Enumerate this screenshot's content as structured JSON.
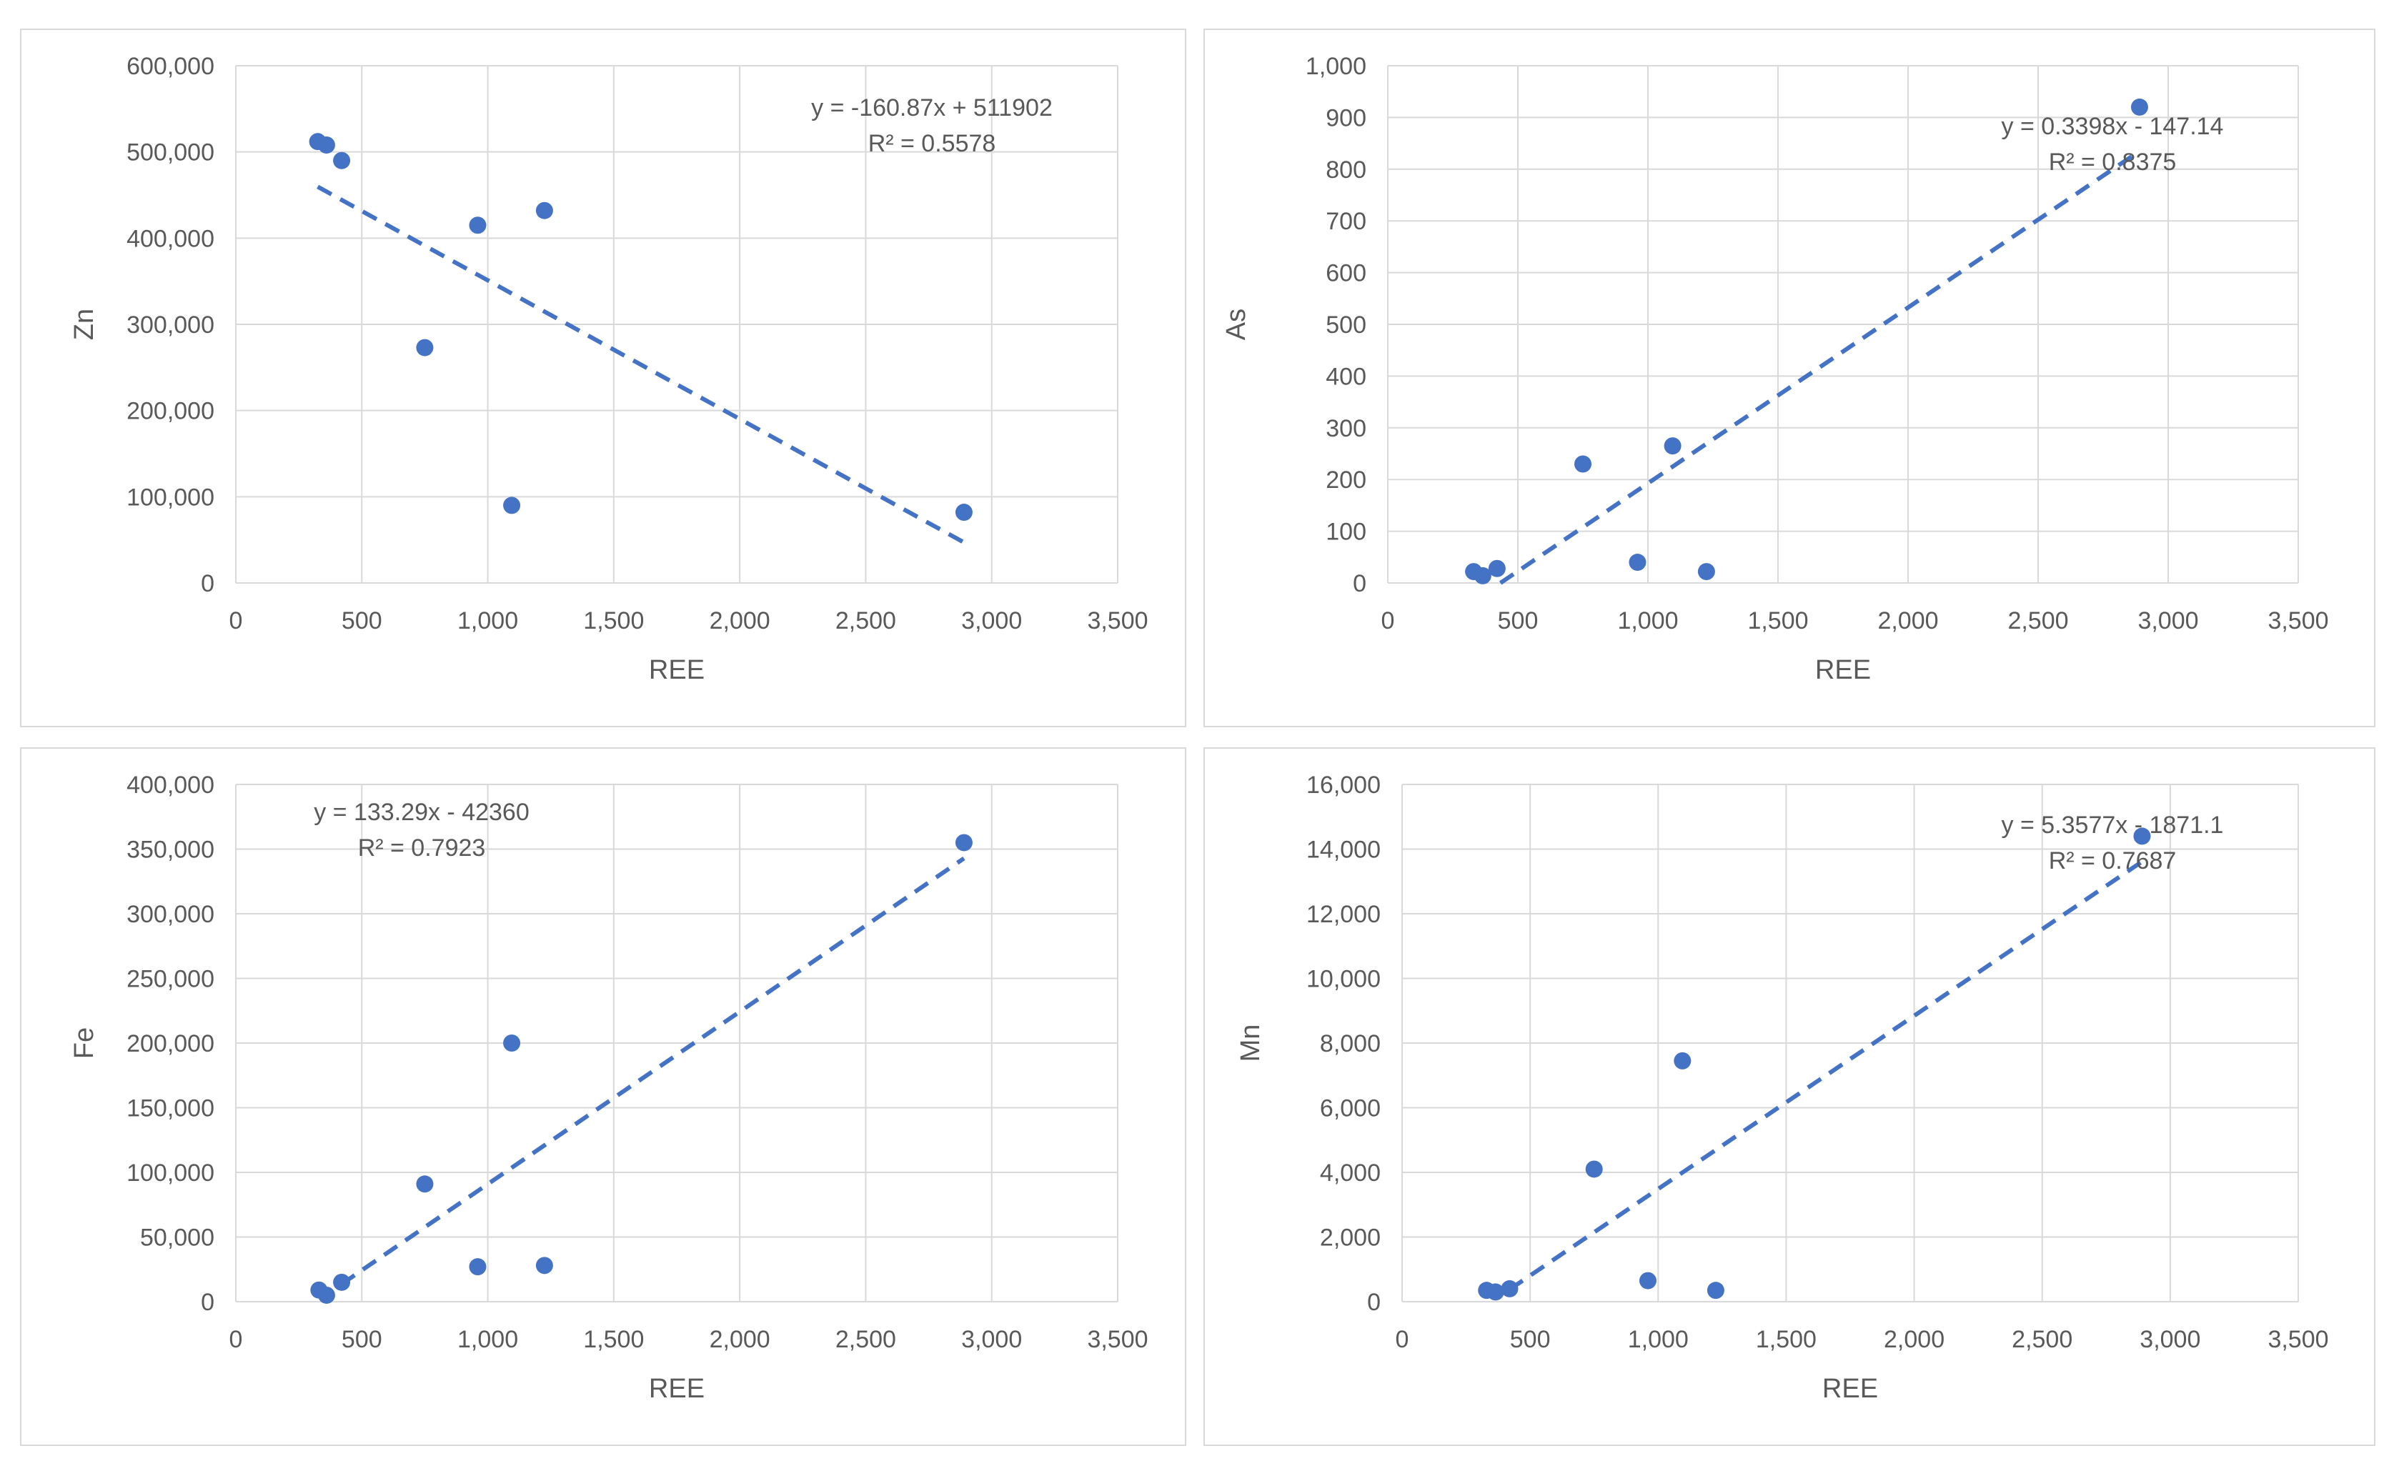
{
  "figure": {
    "chart_data": [
      {
        "type": "scatter",
        "title": "",
        "xlabel": "REE",
        "ylabel": "Zn",
        "xlim": [
          0,
          3500
        ],
        "ylim": [
          0,
          600000
        ],
        "x_ticks": [
          0,
          500,
          1000,
          1500,
          2000,
          2500,
          3000,
          3500
        ],
        "y_ticks": [
          0,
          100000,
          200000,
          300000,
          400000,
          500000,
          600000
        ],
        "x_tick_labels": [
          "0",
          "500",
          "1,000",
          "1,500",
          "2,000",
          "2,500",
          "3,000",
          "3,500"
        ],
        "y_tick_labels": [
          "0",
          "100,000",
          "200,000",
          "300,000",
          "400,000",
          "500,000",
          "600,000"
        ],
        "points": {
          "x": [
            325,
            360,
            420,
            750,
            960,
            1095,
            1225,
            2890
          ],
          "y": [
            512000,
            508000,
            490000,
            273000,
            415000,
            90000,
            432000,
            82000
          ]
        },
        "trendline": {
          "slope": -160.87,
          "intercept": 511902,
          "x_range": [
            325,
            2890
          ]
        },
        "equation": "y = -160.87x + 511902",
        "r_squared": "R² = 0.5578",
        "annotation_position": "top-right",
        "colors": {
          "points": "#4472c4",
          "trendline": "#4472c4",
          "grid": "#d9d9d9"
        }
      },
      {
        "type": "scatter",
        "title": "",
        "xlabel": "REE",
        "ylabel": "As",
        "xlim": [
          0,
          3500
        ],
        "ylim": [
          0,
          1000
        ],
        "x_ticks": [
          0,
          500,
          1000,
          1500,
          2000,
          2500,
          3000,
          3500
        ],
        "y_ticks": [
          0,
          100,
          200,
          300,
          400,
          500,
          600,
          700,
          800,
          900,
          1000
        ],
        "x_tick_labels": [
          "0",
          "500",
          "1,000",
          "1,500",
          "2,000",
          "2,500",
          "3,000",
          "3,500"
        ],
        "y_tick_labels": [
          "0",
          "100",
          "200",
          "300",
          "400",
          "500",
          "600",
          "700",
          "800",
          "900",
          "1,000"
        ],
        "points": {
          "x": [
            330,
            365,
            420,
            750,
            960,
            1095,
            1225,
            2890
          ],
          "y": [
            22,
            14,
            28,
            230,
            40,
            265,
            22,
            920
          ]
        },
        "trendline": {
          "slope": 0.3398,
          "intercept": -147.14,
          "x_range": [
            433,
            2890
          ]
        },
        "equation": "y = 0.3398x - 147.14",
        "r_squared": "R² = 0.8375",
        "annotation_position": "top-right",
        "colors": {
          "points": "#4472c4",
          "trendline": "#4472c4",
          "grid": "#d9d9d9"
        }
      },
      {
        "type": "scatter",
        "title": "",
        "xlabel": "REE",
        "ylabel": "Fe",
        "xlim": [
          0,
          3500
        ],
        "ylim": [
          0,
          400000
        ],
        "x_ticks": [
          0,
          500,
          1000,
          1500,
          2000,
          2500,
          3000,
          3500
        ],
        "y_ticks": [
          0,
          50000,
          100000,
          150000,
          200000,
          250000,
          300000,
          350000,
          400000
        ],
        "x_tick_labels": [
          "0",
          "500",
          "1,000",
          "1,500",
          "2,000",
          "2,500",
          "3,000",
          "3,500"
        ],
        "y_tick_labels": [
          "0",
          "50,000",
          "100,000",
          "150,000",
          "200,000",
          "250,000",
          "300,000",
          "350,000",
          "400,000"
        ],
        "points": {
          "x": [
            330,
            360,
            420,
            750,
            960,
            1095,
            1225,
            2890
          ],
          "y": [
            9000,
            5000,
            15000,
            91000,
            27000,
            200000,
            28000,
            355000
          ]
        },
        "trendline": {
          "slope": 133.29,
          "intercept": -42360,
          "x_range": [
            420,
            2890
          ]
        },
        "equation": "y = 133.29x - 42360",
        "r_squared": "R² = 0.7923",
        "annotation_position": "top-left",
        "colors": {
          "points": "#4472c4",
          "trendline": "#4472c4",
          "grid": "#d9d9d9"
        }
      },
      {
        "type": "scatter",
        "title": "",
        "xlabel": "REE",
        "ylabel": "Mn",
        "xlim": [
          0,
          3500
        ],
        "ylim": [
          0,
          16000
        ],
        "x_ticks": [
          0,
          500,
          1000,
          1500,
          2000,
          2500,
          3000,
          3500
        ],
        "y_ticks": [
          0,
          2000,
          4000,
          6000,
          8000,
          10000,
          12000,
          14000,
          16000
        ],
        "x_tick_labels": [
          "0",
          "500",
          "1,000",
          "1,500",
          "2,000",
          "2,500",
          "3,000",
          "3,500"
        ],
        "y_tick_labels": [
          "0",
          "2,000",
          "4,000",
          "6,000",
          "8,000",
          "10,000",
          "12,000",
          "14,000",
          "16,000"
        ],
        "points": {
          "x": [
            330,
            365,
            420,
            750,
            960,
            1095,
            1225,
            2890
          ],
          "y": [
            350,
            300,
            400,
            4100,
            650,
            7450,
            350,
            14400
          ]
        },
        "trendline": {
          "slope": 5.3577,
          "intercept": -1871.1,
          "x_range": [
            420,
            2890
          ]
        },
        "equation": "y = 5.3577x - 1871.1",
        "r_squared": "R² = 0.7687",
        "annotation_position": "top-right",
        "colors": {
          "points": "#4472c4",
          "trendline": "#4472c4",
          "grid": "#d9d9d9"
        }
      }
    ]
  }
}
